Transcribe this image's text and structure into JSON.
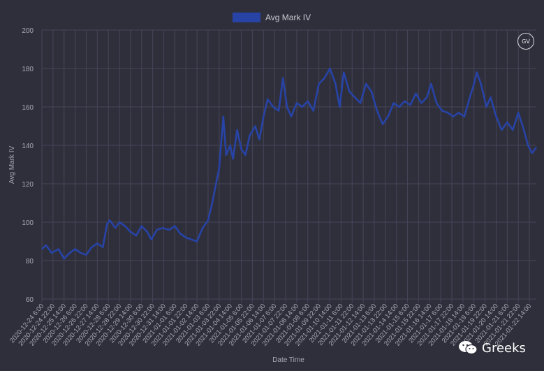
{
  "brand_badge": "GV",
  "watermark_text": "Greeks",
  "chart_data": {
    "type": "line",
    "legend": {
      "label": "Avg Mark IV",
      "color": "#2743a6",
      "placement": "top-center"
    },
    "series": [
      {
        "name": "Avg Mark IV"
      }
    ],
    "xlabel": "Date Time",
    "ylabel": "Avg Mark IV",
    "ylim": [
      60,
      200
    ],
    "yticks": [
      60,
      80,
      100,
      120,
      140,
      160,
      180,
      200
    ],
    "grid": true,
    "x_tick_labels": [
      "2020-12-24 6:00",
      "2020-12-24 22:00",
      "2020-12-25 14:00",
      "2020-12-26 6:00",
      "2020-12-26 22:00",
      "2020-12-27 14:00",
      "2020-12-28 6:00",
      "2020-12-28 22:00",
      "2020-12-29 14:00",
      "2020-12-30 6:00",
      "2020-12-30 22:00",
      "2020-12-31 14:00",
      "2021-01-01 6:00",
      "2021-01-01 22:00",
      "2021-01-02 14:00",
      "2021-01-03 6:00",
      "2021-01-03 22:00",
      "2021-01-04 14:00",
      "2021-01-05 6:00",
      "2021-01-05 22:00",
      "2021-01-06 14:00",
      "2021-01-07 6:00",
      "2021-01-07 22:00",
      "2021-01-08 14:00",
      "2021-01-09 6:00",
      "2021-01-09 22:00",
      "2021-01-10 14:00",
      "2021-01-11 6:00",
      "2021-01-11 22:00",
      "2021-01-12 14:00",
      "2021-01-13 6:00",
      "2021-01-13 22:00",
      "2021-01-14 14:00",
      "2021-01-15 6:00",
      "2021-01-15 22:00",
      "2021-01-16 14:00",
      "2021-01-17 6:00",
      "2021-01-17 22:00",
      "2021-01-18 14:00",
      "2021-01-19 6:00",
      "2021-01-19 22:00",
      "2021-01-20 14:00",
      "2021-01-21 6:00",
      "2021-01-21 22:00",
      "2021-01-22 14:00"
    ],
    "x_start": "2020-12-24 6:00",
    "x_end": "2021-01-23 0:00",
    "points": [
      [
        "2020-12-24 6:00",
        86
      ],
      [
        "2020-12-24 12:00",
        88
      ],
      [
        "2020-12-24 20:00",
        84
      ],
      [
        "2020-12-25 6:00",
        86
      ],
      [
        "2020-12-25 14:00",
        81
      ],
      [
        "2020-12-25 22:00",
        84
      ],
      [
        "2020-12-26 6:00",
        86
      ],
      [
        "2020-12-26 14:00",
        84
      ],
      [
        "2020-12-26 22:00",
        83
      ],
      [
        "2020-12-27 6:00",
        87
      ],
      [
        "2020-12-27 14:00",
        89
      ],
      [
        "2020-12-27 22:00",
        87
      ],
      [
        "2020-12-28 4:00",
        99
      ],
      [
        "2020-12-28 8:00",
        101
      ],
      [
        "2020-12-28 16:00",
        97
      ],
      [
        "2020-12-28 22:00",
        100
      ],
      [
        "2020-12-29 6:00",
        98
      ],
      [
        "2020-12-29 14:00",
        95
      ],
      [
        "2020-12-29 22:00",
        93
      ],
      [
        "2020-12-30 6:00",
        98
      ],
      [
        "2020-12-30 14:00",
        95
      ],
      [
        "2020-12-30 20:00",
        91
      ],
      [
        "2020-12-31 4:00",
        96
      ],
      [
        "2020-12-31 12:00",
        97
      ],
      [
        "2020-12-31 22:00",
        96
      ],
      [
        "2021-01-01 6:00",
        98
      ],
      [
        "2021-01-01 14:00",
        94
      ],
      [
        "2021-01-01 22:00",
        92
      ],
      [
        "2021-01-02 6:00",
        91
      ],
      [
        "2021-01-02 14:00",
        90
      ],
      [
        "2021-01-02 22:00",
        97
      ],
      [
        "2021-01-03 6:00",
        101
      ],
      [
        "2021-01-03 12:00",
        110
      ],
      [
        "2021-01-03 18:00",
        121
      ],
      [
        "2021-01-03 22:00",
        128
      ],
      [
        "2021-01-04 4:00",
        155
      ],
      [
        "2021-01-04 8:00",
        135
      ],
      [
        "2021-01-04 14:00",
        140
      ],
      [
        "2021-01-04 18:00",
        133
      ],
      [
        "2021-01-05 0:00",
        148
      ],
      [
        "2021-01-05 6:00",
        138
      ],
      [
        "2021-01-05 12:00",
        135
      ],
      [
        "2021-01-05 18:00",
        145
      ],
      [
        "2021-01-06 2:00",
        150
      ],
      [
        "2021-01-06 8:00",
        143
      ],
      [
        "2021-01-06 14:00",
        155
      ],
      [
        "2021-01-06 20:00",
        164
      ],
      [
        "2021-01-07 4:00",
        160
      ],
      [
        "2021-01-07 12:00",
        158
      ],
      [
        "2021-01-07 18:00",
        175
      ],
      [
        "2021-01-08 0:00",
        160
      ],
      [
        "2021-01-08 6:00",
        155
      ],
      [
        "2021-01-08 14:00",
        162
      ],
      [
        "2021-01-08 22:00",
        160
      ],
      [
        "2021-01-09 6:00",
        163
      ],
      [
        "2021-01-09 14:00",
        158
      ],
      [
        "2021-01-09 22:00",
        172
      ],
      [
        "2021-01-10 6:00",
        175
      ],
      [
        "2021-01-10 14:00",
        180
      ],
      [
        "2021-01-10 22:00",
        172
      ],
      [
        "2021-01-11 4:00",
        160
      ],
      [
        "2021-01-11 10:00",
        178
      ],
      [
        "2021-01-11 18:00",
        168
      ],
      [
        "2021-01-12 2:00",
        165
      ],
      [
        "2021-01-12 10:00",
        162
      ],
      [
        "2021-01-12 18:00",
        172
      ],
      [
        "2021-01-13 2:00",
        168
      ],
      [
        "2021-01-13 10:00",
        158
      ],
      [
        "2021-01-13 18:00",
        151
      ],
      [
        "2021-01-14 2:00",
        155
      ],
      [
        "2021-01-14 10:00",
        162
      ],
      [
        "2021-01-14 18:00",
        160
      ],
      [
        "2021-01-15 2:00",
        163
      ],
      [
        "2021-01-15 10:00",
        161
      ],
      [
        "2021-01-15 18:00",
        167
      ],
      [
        "2021-01-16 2:00",
        162
      ],
      [
        "2021-01-16 10:00",
        165
      ],
      [
        "2021-01-16 16:00",
        172
      ],
      [
        "2021-01-17 0:00",
        162
      ],
      [
        "2021-01-17 8:00",
        158
      ],
      [
        "2021-01-17 16:00",
        157
      ],
      [
        "2021-01-18 0:00",
        155
      ],
      [
        "2021-01-18 8:00",
        157
      ],
      [
        "2021-01-18 16:00",
        155
      ],
      [
        "2021-01-19 0:00",
        165
      ],
      [
        "2021-01-19 6:00",
        172
      ],
      [
        "2021-01-19 10:00",
        178
      ],
      [
        "2021-01-19 16:00",
        172
      ],
      [
        "2021-01-20 0:00",
        160
      ],
      [
        "2021-01-20 6:00",
        165
      ],
      [
        "2021-01-20 14:00",
        155
      ],
      [
        "2021-01-20 22:00",
        148
      ],
      [
        "2021-01-21 6:00",
        152
      ],
      [
        "2021-01-21 14:00",
        148
      ],
      [
        "2021-01-21 22:00",
        157
      ],
      [
        "2021-01-22 6:00",
        148
      ],
      [
        "2021-01-22 12:00",
        140
      ],
      [
        "2021-01-22 18:00",
        136
      ],
      [
        "2021-01-23 0:00",
        139
      ]
    ]
  }
}
